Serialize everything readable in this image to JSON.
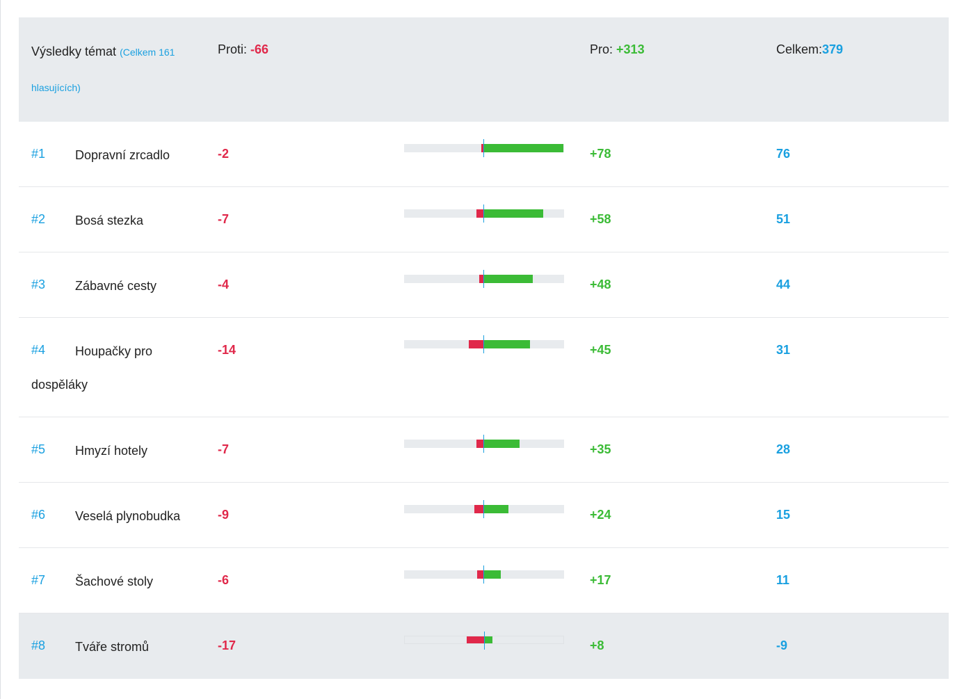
{
  "header": {
    "title": "Výsledky témat",
    "subtitle": "(Celkem 161 hlasujících)",
    "against_label": "Proti:",
    "against_value": "-66",
    "for_label": "Pro:",
    "for_value": "+313",
    "total_label": "Celkem:",
    "total_value": "379"
  },
  "rows": [
    {
      "rank": "#1",
      "name": "Dopravní zrcadlo",
      "against": "-2",
      "for": "+78",
      "total": "76",
      "neg": 2,
      "pos": 78
    },
    {
      "rank": "#2",
      "name": "Bosá stezka",
      "against": "-7",
      "for": "+58",
      "total": "51",
      "neg": 7,
      "pos": 58
    },
    {
      "rank": "#3",
      "name": "Zábavné cesty",
      "against": "-4",
      "for": "+48",
      "total": "44",
      "neg": 4,
      "pos": 48
    },
    {
      "rank": "#4",
      "name": "Houpačky pro dospěláky",
      "against": "-14",
      "for": "+45",
      "total": "31",
      "neg": 14,
      "pos": 45
    },
    {
      "rank": "#5",
      "name": "Hmyzí hotely",
      "against": "-7",
      "for": "+35",
      "total": "28",
      "neg": 7,
      "pos": 35
    },
    {
      "rank": "#6",
      "name": "Veselá plynobudka",
      "against": "-9",
      "for": "+24",
      "total": "15",
      "neg": 9,
      "pos": 24
    },
    {
      "rank": "#7",
      "name": "Šachové stoly",
      "against": "-6",
      "for": "+17",
      "total": "11",
      "neg": 6,
      "pos": 17
    },
    {
      "rank": "#8",
      "name": "Tváře stromů",
      "against": "-17",
      "for": "+8",
      "total": "-9",
      "neg": 17,
      "pos": 8
    }
  ],
  "colors": {
    "against": "#e0284a",
    "for": "#3bbb36",
    "total": "#1aa0e0",
    "bar_track": "#e8ebee"
  }
}
